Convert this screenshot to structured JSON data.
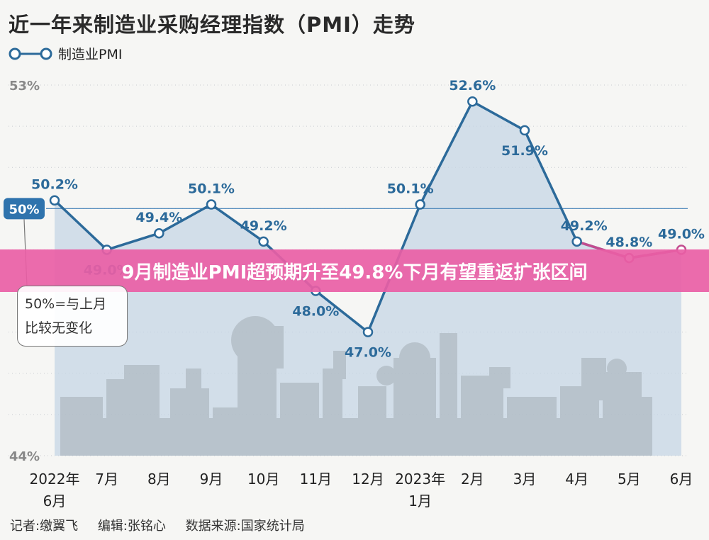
{
  "header": {
    "title": "近一年来制造业采购经理指数（PMI）走势"
  },
  "legend": {
    "series_name": "制造业PMI"
  },
  "banner": {
    "text": "9月制造业PMI超预期升至49.8%下月有望重返扩张区间"
  },
  "note": {
    "line1": "50%=与上月",
    "line2": "比较无变化",
    "badge": "50%"
  },
  "credits": {
    "reporter": "记者:缴翼飞",
    "editor": "编辑:张铭心",
    "source": "数据来源:国家统计局"
  },
  "colors": {
    "line": "#2c6a9a",
    "area_fill": "#c5d5e6",
    "highlight_line": "#c24c8f",
    "banner": "#e95ea5",
    "badge": "#2f73ad"
  },
  "chart_data": {
    "type": "line",
    "title": "近一年来制造业采购经理指数（PMI）走势",
    "ylim": [
      44,
      53
    ],
    "yticks": [
      "53%",
      "44%"
    ],
    "reference_line": 50,
    "categories": [
      [
        "2022年",
        "6月"
      ],
      [
        "7月"
      ],
      [
        "8月"
      ],
      [
        "9月"
      ],
      [
        "10月"
      ],
      [
        "11月"
      ],
      [
        "12月"
      ],
      [
        "2023年",
        "1月"
      ],
      [
        "2月"
      ],
      [
        "3月"
      ],
      [
        "4月"
      ],
      [
        "5月"
      ],
      [
        "6月"
      ]
    ],
    "series": [
      {
        "name": "制造业PMI",
        "values": [
          50.2,
          49.0,
          49.4,
          50.1,
          49.2,
          48.0,
          47.0,
          50.1,
          52.6,
          51.9,
          49.2,
          48.8,
          49.0
        ]
      }
    ],
    "labels": [
      "50.2%",
      "49.0%",
      "49.4%",
      "50.1%",
      "49.2%",
      "48.0%",
      "47.0%",
      "50.1%",
      "52.6%",
      "51.9%",
      "49.2%",
      "48.8%",
      "49.0%"
    ]
  }
}
